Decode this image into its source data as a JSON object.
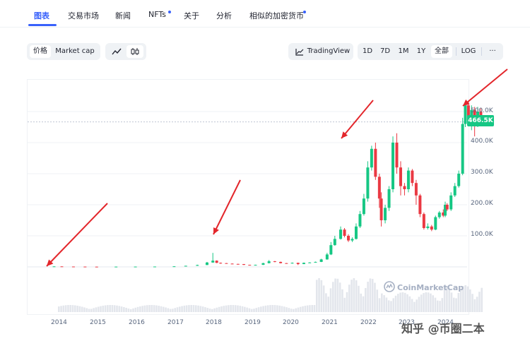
{
  "tabs": [
    "图表",
    "交易市场",
    "新闻",
    "NFTs",
    "关于",
    "分析",
    "相似的加密货币"
  ],
  "toolbar": {
    "price_label": "价格",
    "marketcap_label": "Market cap",
    "tradingview_label": "TradingView",
    "ranges": [
      "1D",
      "7D",
      "1M",
      "1Y",
      "全部"
    ],
    "log_label": "LOG",
    "more_label": "···"
  },
  "chart_data": {
    "type": "candlestick",
    "y_ticks": [
      "500.0K",
      "400.0K",
      "300.0K",
      "200.0K",
      "100.0K"
    ],
    "x_ticks": [
      "2014",
      "2015",
      "2016",
      "2017",
      "2018",
      "2019",
      "2020",
      "2021",
      "2022",
      "2023",
      "2024"
    ],
    "current_price": "466.5K",
    "ylim": [
      0,
      560000
    ],
    "up_color": "#16c784",
    "down_color": "#ea3943",
    "candles": [
      [
        2013.9,
        900,
        1500,
        800,
        1800
      ],
      [
        2014.1,
        1500,
        1100,
        900,
        1600
      ],
      [
        2014.4,
        1100,
        900,
        800,
        1200
      ],
      [
        2014.7,
        900,
        700,
        600,
        1000
      ],
      [
        2015.0,
        700,
        600,
        500,
        800
      ],
      [
        2015.5,
        600,
        800,
        500,
        900
      ],
      [
        2016.0,
        800,
        900,
        700,
        1000
      ],
      [
        2016.5,
        900,
        1100,
        800,
        1200
      ],
      [
        2017.0,
        1100,
        1800,
        1000,
        2000
      ],
      [
        2017.3,
        1800,
        3500,
        1700,
        3700
      ],
      [
        2017.6,
        3500,
        6000,
        3200,
        7000
      ],
      [
        2017.85,
        6000,
        14000,
        5800,
        16000
      ],
      [
        2018.0,
        14000,
        20000,
        13000,
        45000
      ],
      [
        2018.1,
        20000,
        13000,
        12000,
        21000
      ],
      [
        2018.2,
        13000,
        12000,
        10000,
        14000
      ],
      [
        2018.35,
        12000,
        10500,
        10000,
        12500
      ],
      [
        2018.5,
        10500,
        9500,
        9000,
        11000
      ],
      [
        2018.65,
        9500,
        9000,
        8500,
        10000
      ],
      [
        2018.8,
        9000,
        6500,
        6000,
        9200
      ],
      [
        2018.95,
        6500,
        5500,
        5000,
        6800
      ],
      [
        2019.1,
        5500,
        6500,
        5400,
        7000
      ],
      [
        2019.3,
        6500,
        12000,
        6400,
        13000
      ],
      [
        2019.45,
        12000,
        18000,
        11000,
        22000
      ],
      [
        2019.6,
        18000,
        16000,
        15000,
        19000
      ],
      [
        2019.75,
        16000,
        12000,
        11000,
        17000
      ],
      [
        2019.9,
        12000,
        11000,
        10000,
        12500
      ],
      [
        2020.05,
        11000,
        13000,
        10500,
        14000
      ],
      [
        2020.2,
        13000,
        9000,
        6000,
        13500
      ],
      [
        2020.35,
        9000,
        13000,
        8800,
        14000
      ],
      [
        2020.5,
        13000,
        14000,
        12500,
        15000
      ],
      [
        2020.65,
        14000,
        16000,
        13500,
        17000
      ],
      [
        2020.8,
        16000,
        24000,
        15500,
        26000
      ],
      [
        2020.95,
        24000,
        40000,
        23000,
        45000
      ],
      [
        2021.05,
        40000,
        70000,
        38000,
        80000
      ],
      [
        2021.15,
        70000,
        90000,
        68000,
        100000
      ],
      [
        2021.3,
        90000,
        120000,
        88000,
        130000
      ],
      [
        2021.4,
        120000,
        100000,
        95000,
        125000
      ],
      [
        2021.5,
        100000,
        85000,
        80000,
        105000
      ],
      [
        2021.6,
        85000,
        90000,
        80000,
        95000
      ],
      [
        2021.7,
        90000,
        130000,
        88000,
        140000
      ],
      [
        2021.8,
        130000,
        170000,
        125000,
        180000
      ],
      [
        2021.9,
        170000,
        220000,
        165000,
        235000
      ],
      [
        2022.0,
        220000,
        320000,
        210000,
        340000
      ],
      [
        2022.1,
        320000,
        380000,
        310000,
        390000
      ],
      [
        2022.2,
        380000,
        290000,
        280000,
        400000
      ],
      [
        2022.3,
        290000,
        220000,
        190000,
        300000
      ],
      [
        2022.35,
        220000,
        150000,
        130000,
        240000
      ],
      [
        2022.45,
        150000,
        190000,
        140000,
        200000
      ],
      [
        2022.55,
        190000,
        250000,
        180000,
        260000
      ],
      [
        2022.65,
        250000,
        400000,
        240000,
        420000
      ],
      [
        2022.75,
        400000,
        320000,
        300000,
        430000
      ],
      [
        2022.85,
        320000,
        260000,
        230000,
        340000
      ],
      [
        2022.95,
        260000,
        250000,
        230000,
        270000
      ],
      [
        2023.05,
        250000,
        310000,
        240000,
        320000
      ],
      [
        2023.15,
        310000,
        270000,
        260000,
        315000
      ],
      [
        2023.25,
        270000,
        230000,
        200000,
        280000
      ],
      [
        2023.35,
        230000,
        170000,
        160000,
        235000
      ],
      [
        2023.45,
        170000,
        125000,
        120000,
        175000
      ],
      [
        2023.55,
        125000,
        130000,
        120000,
        140000
      ],
      [
        2023.65,
        130000,
        120000,
        115000,
        135000
      ],
      [
        2023.75,
        120000,
        160000,
        118000,
        165000
      ],
      [
        2023.85,
        160000,
        175000,
        155000,
        180000
      ],
      [
        2023.95,
        175000,
        165000,
        160000,
        185000
      ],
      [
        2024.0,
        165000,
        200000,
        160000,
        210000
      ],
      [
        2024.05,
        200000,
        185000,
        180000,
        205000
      ],
      [
        2024.15,
        185000,
        230000,
        180000,
        240000
      ],
      [
        2024.25,
        230000,
        260000,
        225000,
        270000
      ],
      [
        2024.35,
        260000,
        300000,
        255000,
        310000
      ],
      [
        2024.45,
        300000,
        460000,
        295000,
        480000
      ],
      [
        2024.52,
        460000,
        520000,
        450000,
        530000
      ],
      [
        2024.6,
        520000,
        470000,
        460000,
        535000
      ],
      [
        2024.68,
        470000,
        505000,
        440000,
        520000
      ],
      [
        2024.76,
        505000,
        460000,
        420000,
        515000
      ],
      [
        2024.84,
        460000,
        500000,
        450000,
        515000
      ],
      [
        2024.92,
        500000,
        466500,
        455000,
        510000
      ]
    ]
  },
  "watermark": "CoinMarketCap",
  "zhihu_watermark": "知乎 @币圈二本"
}
